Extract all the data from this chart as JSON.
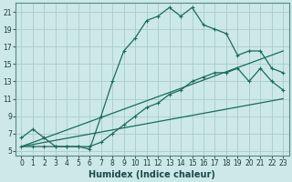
{
  "xlabel": "Humidex (Indice chaleur)",
  "bg_color": "#cce8e8",
  "grid_color": "#aacccc",
  "line_color": "#1a6b5a",
  "xlim": [
    -0.5,
    23.5
  ],
  "ylim": [
    4.5,
    22
  ],
  "xticks": [
    0,
    1,
    2,
    3,
    4,
    5,
    6,
    7,
    8,
    9,
    10,
    11,
    12,
    13,
    14,
    15,
    16,
    17,
    18,
    19,
    20,
    21,
    22,
    23
  ],
  "yticks": [
    5,
    7,
    9,
    11,
    13,
    15,
    17,
    19,
    21
  ],
  "line1_x": [
    0,
    1,
    2,
    3,
    4,
    5,
    6,
    7,
    8,
    9,
    10,
    11,
    12,
    13,
    14,
    15,
    16,
    17,
    18,
    19,
    20,
    21,
    22,
    23
  ],
  "line1_y": [
    6.5,
    7.5,
    6.5,
    5.5,
    5.5,
    5.5,
    5.2,
    9.0,
    13.0,
    16.5,
    18.0,
    20.0,
    20.5,
    21.5,
    20.5,
    21.5,
    19.5,
    19.0,
    18.5,
    16.0,
    16.5,
    16.5,
    14.5,
    14.0
  ],
  "line2_x": [
    0,
    1,
    2,
    3,
    4,
    5,
    6,
    7,
    8,
    9,
    10,
    11,
    12,
    13,
    14,
    15,
    16,
    17,
    18,
    19,
    20,
    21,
    22,
    23
  ],
  "line2_y": [
    5.5,
    5.5,
    5.5,
    5.5,
    5.5,
    5.5,
    5.5,
    6.0,
    7.0,
    8.0,
    9.0,
    10.0,
    10.5,
    11.5,
    12.0,
    13.0,
    13.5,
    14.0,
    14.0,
    14.5,
    13.0,
    14.5,
    13.0,
    12.0
  ],
  "line3_x": [
    0,
    23
  ],
  "line3_y": [
    5.5,
    11.0
  ],
  "line4_x": [
    0,
    23
  ],
  "line4_y": [
    5.5,
    16.5
  ],
  "xlabel_color": "#1a4a4a",
  "tick_color": "#1a3a3a",
  "tick_fontsize": 5.5,
  "xlabel_fontsize": 7
}
